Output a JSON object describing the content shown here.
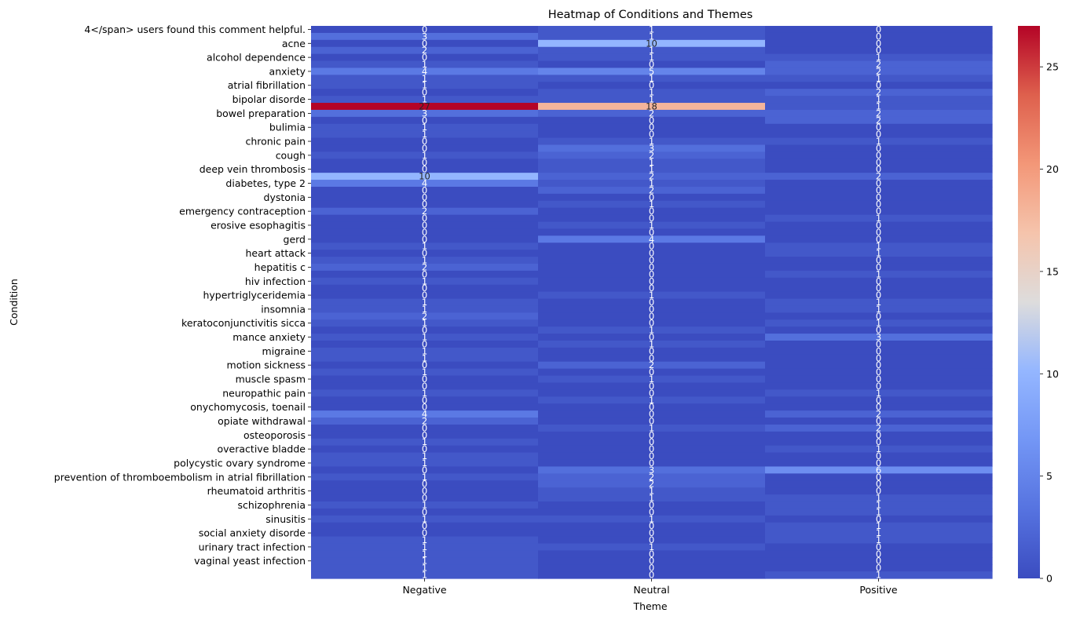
{
  "chart_data": {
    "type": "heatmap",
    "title": "Heatmap of Conditions and Themes",
    "xlabel": "Theme",
    "ylabel": "Condition",
    "x_categories": [
      "Negative",
      "Neutral",
      "Positive"
    ],
    "y_tick_labels": [
      "4</span> users found this comment helpful.",
      "acne",
      "alcohol dependence",
      "anxiety",
      "atrial fibrillation",
      "bipolar disorde",
      "bowel preparation",
      "bulimia",
      "chronic pain",
      "cough",
      "deep vein thrombosis",
      "diabetes, type 2",
      "dystonia",
      "emergency contraception",
      "erosive esophagitis",
      "gerd",
      "heart attack",
      "hepatitis c",
      "hiv infection",
      "hypertriglyceridemia",
      "insomnia",
      "keratoconjunctivitis sicca",
      "mance anxiety",
      "migraine",
      "motion sickness",
      "muscle spasm",
      "neuropathic pain",
      "onychomycosis, toenail",
      "opiate withdrawal",
      "osteoporosis",
      "overactive bladde",
      "polycystic ovary syndrome",
      "prevention of thromboembolism in atrial fibrillation",
      "rheumatoid arthritis",
      "schizophrenia",
      "sinusitis",
      "social anxiety disorde",
      "urinary tract infection",
      "vaginal yeast infection"
    ],
    "rows": 78,
    "values": [
      [
        0,
        1,
        0
      ],
      [
        3,
        1,
        0
      ],
      [
        0,
        10,
        0
      ],
      [
        2,
        1,
        0
      ],
      [
        0,
        1,
        1
      ],
      [
        1,
        0,
        2
      ],
      [
        4,
        5,
        2
      ],
      [
        1,
        1,
        1
      ],
      [
        1,
        0,
        0
      ],
      [
        0,
        1,
        2
      ],
      [
        1,
        1,
        1
      ],
      [
        27,
        18,
        1
      ],
      [
        3,
        2,
        2
      ],
      [
        0,
        0,
        2
      ],
      [
        1,
        0,
        0
      ],
      [
        1,
        0,
        0
      ],
      [
        0,
        1,
        1
      ],
      [
        0,
        3,
        0
      ],
      [
        1,
        2,
        0
      ],
      [
        0,
        1,
        0
      ],
      [
        0,
        1,
        0
      ],
      [
        10,
        2,
        2
      ],
      [
        4,
        1,
        0
      ],
      [
        0,
        2,
        0
      ],
      [
        0,
        0,
        0
      ],
      [
        0,
        1,
        0
      ],
      [
        2,
        0,
        0
      ],
      [
        0,
        0,
        1
      ],
      [
        0,
        1,
        0
      ],
      [
        0,
        0,
        0
      ],
      [
        0,
        4,
        0
      ],
      [
        1,
        0,
        1
      ],
      [
        0,
        0,
        1
      ],
      [
        1,
        0,
        0
      ],
      [
        2,
        0,
        0
      ],
      [
        0,
        0,
        1
      ],
      [
        1,
        0,
        0
      ],
      [
        0,
        0,
        0
      ],
      [
        0,
        1,
        0
      ],
      [
        1,
        0,
        1
      ],
      [
        1,
        0,
        1
      ],
      [
        2,
        0,
        0
      ],
      [
        1,
        0,
        1
      ],
      [
        0,
        1,
        0
      ],
      [
        1,
        0,
        3
      ],
      [
        0,
        1,
        0
      ],
      [
        1,
        0,
        0
      ],
      [
        1,
        0,
        0
      ],
      [
        0,
        2,
        0
      ],
      [
        1,
        0,
        0
      ],
      [
        0,
        1,
        0
      ],
      [
        0,
        0,
        0
      ],
      [
        1,
        0,
        1
      ],
      [
        0,
        1,
        0
      ],
      [
        0,
        0,
        0
      ],
      [
        4,
        0,
        2
      ],
      [
        2,
        0,
        0
      ],
      [
        0,
        1,
        2
      ],
      [
        0,
        0,
        0
      ],
      [
        1,
        0,
        0
      ],
      [
        0,
        0,
        1
      ],
      [
        1,
        0,
        0
      ],
      [
        1,
        0,
        0
      ],
      [
        0,
        3,
        6
      ],
      [
        1,
        2,
        0
      ],
      [
        0,
        2,
        0
      ],
      [
        0,
        1,
        0
      ],
      [
        0,
        1,
        1
      ],
      [
        1,
        0,
        1
      ],
      [
        0,
        0,
        1
      ],
      [
        1,
        1,
        0
      ],
      [
        0,
        0,
        1
      ],
      [
        0,
        0,
        1
      ],
      [
        1,
        0,
        1
      ],
      [
        1,
        1,
        0
      ],
      [
        1,
        0,
        0
      ],
      [
        1,
        0,
        0
      ],
      [
        1,
        0,
        0
      ],
      [
        1,
        0,
        1
      ]
    ],
    "vmin": 0,
    "vmax": 27,
    "colormap": "coolwarm",
    "colorbar_ticks": [
      0,
      5,
      10,
      15,
      20,
      25
    ],
    "grid": false
  }
}
